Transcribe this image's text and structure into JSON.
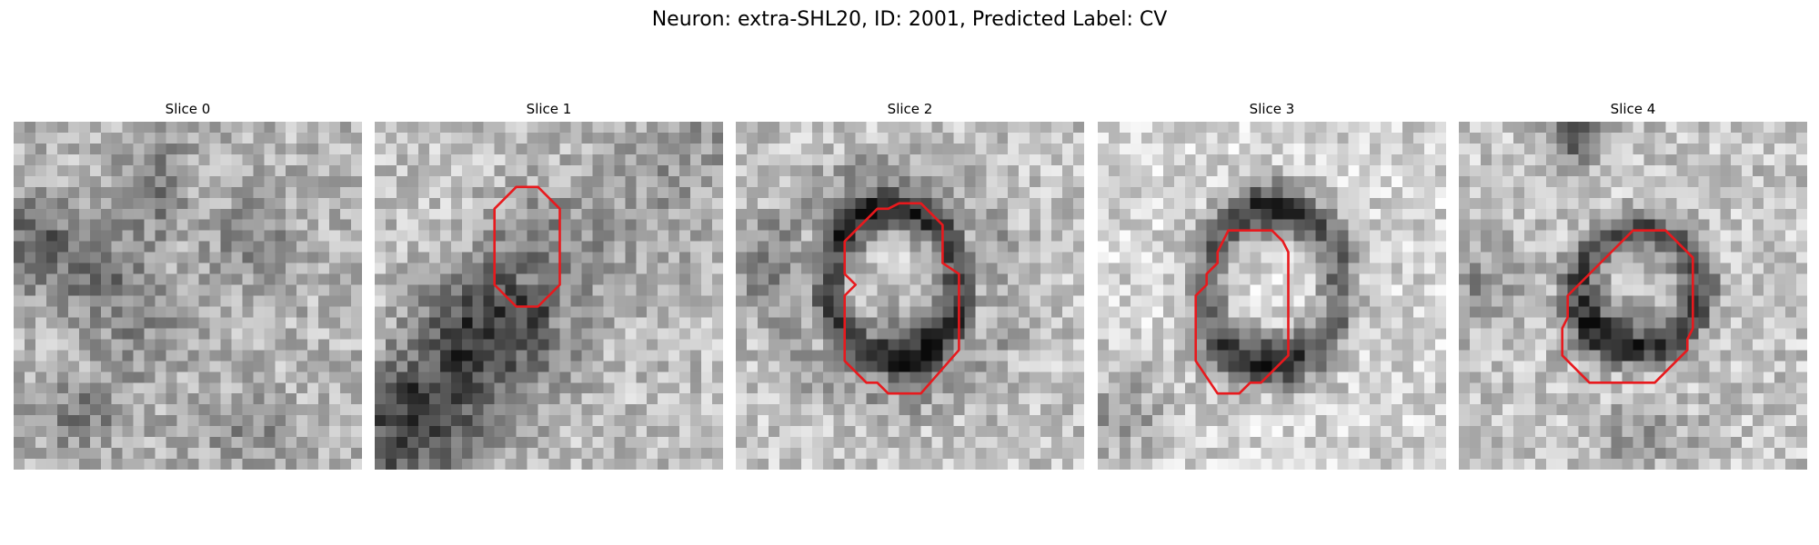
{
  "figure": {
    "title": "Neuron: extra-SHL20, ID: 2001, Predicted Label: CV"
  },
  "panels": [
    {
      "title": "Slice 0"
    },
    {
      "title": "Slice 1"
    },
    {
      "title": "Slice 2"
    },
    {
      "title": "Slice 3"
    },
    {
      "title": "Slice 4"
    }
  ],
  "colors": {
    "contour": "#e8191d",
    "background": "#ffffff"
  }
}
